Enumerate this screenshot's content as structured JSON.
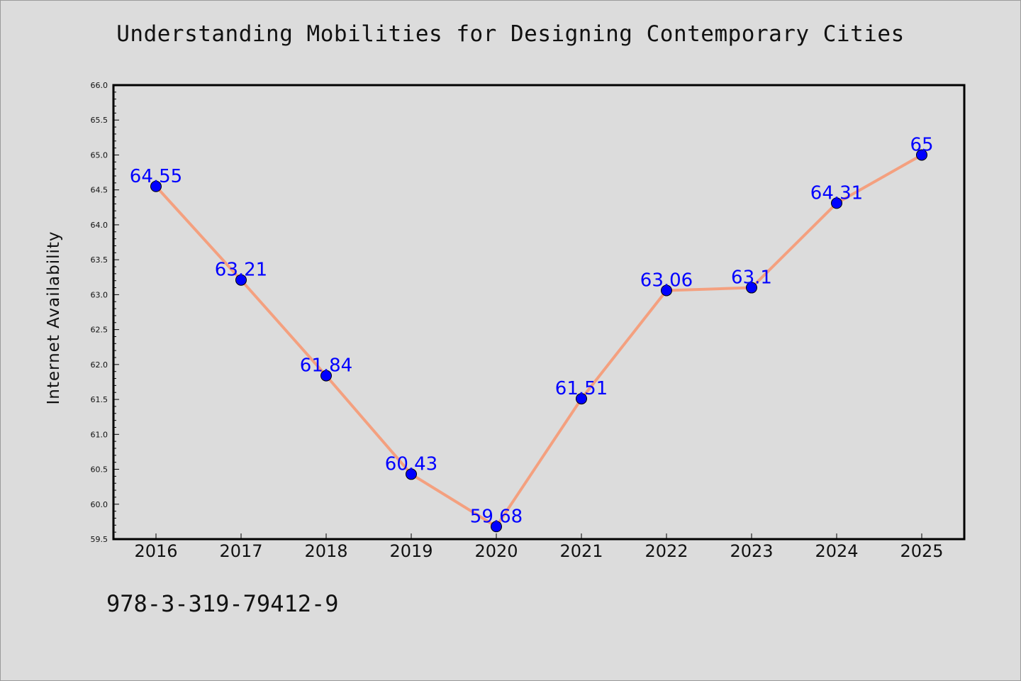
{
  "chart_data": {
    "type": "line",
    "title": "Understanding Mobilities for Designing Contemporary Cities",
    "xlabel": "",
    "ylabel": "Internet Availability",
    "categories": [
      "2016",
      "2017",
      "2018",
      "2019",
      "2020",
      "2021",
      "2022",
      "2023",
      "2024",
      "2025"
    ],
    "values": [
      64.55,
      63.21,
      61.84,
      60.43,
      59.68,
      61.51,
      63.06,
      63.1,
      64.31,
      65
    ],
    "data_labels": [
      "64.55",
      "63.21",
      "61.84",
      "60.43",
      "59.68",
      "61.51",
      "63.06",
      "63.1",
      "64.31",
      "65"
    ],
    "ylim": [
      59.5,
      66.0
    ],
    "yticks": [
      "59.5",
      "60.0",
      "60.5",
      "61.0",
      "61.5",
      "62.0",
      "62.5",
      "63.0",
      "63.5",
      "64.0",
      "64.5",
      "65.0",
      "65.5",
      "66.0"
    ],
    "grid": false,
    "line_color": "#f4a07f",
    "marker_color": "#0000ff",
    "label_color": "#0000ff"
  },
  "footer": {
    "isbn": "978-3-319-79412-9"
  }
}
